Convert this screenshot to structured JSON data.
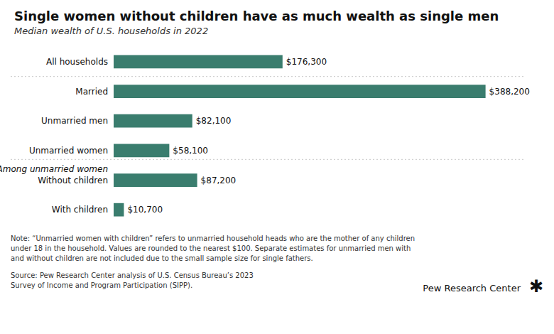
{
  "chart_data": {
    "type": "bar",
    "orientation": "horizontal",
    "title": "Single women without children have as much wealth as single men",
    "subtitle": "Median wealth of U.S. households in 2022",
    "categories": [
      "All households",
      "Married",
      "Unmarried men",
      "Unmarried women",
      "Without children",
      "With children"
    ],
    "values": [
      176300,
      388200,
      82100,
      58100,
      87200,
      10700
    ],
    "value_labels": [
      "$176,300",
      "$388,200",
      "$82,100",
      "$58,100",
      "$87,200",
      "$10,700"
    ],
    "data_labels": true,
    "color": "#3a7d6e",
    "xlim": [
      0,
      430000
    ],
    "grid": false,
    "tick_labels": "y",
    "annotations": [
      "Among unmarried women",
      "Pew Research Center",
      "✱"
    ],
    "note": "Note: “Unmarried women with children” refers to unmarried household heads who are the mother of any children\nunder 18 in the household. Values are rounded to the nearest $100. Separate estimates for unmarried men with\nand without children are not included due to the small sample size for single fathers.",
    "source": "Source: Pew Research Center analysis of U.S. Census Bureau’s 2023\nSurvey of Income and Program Participation (SIPP)."
  }
}
